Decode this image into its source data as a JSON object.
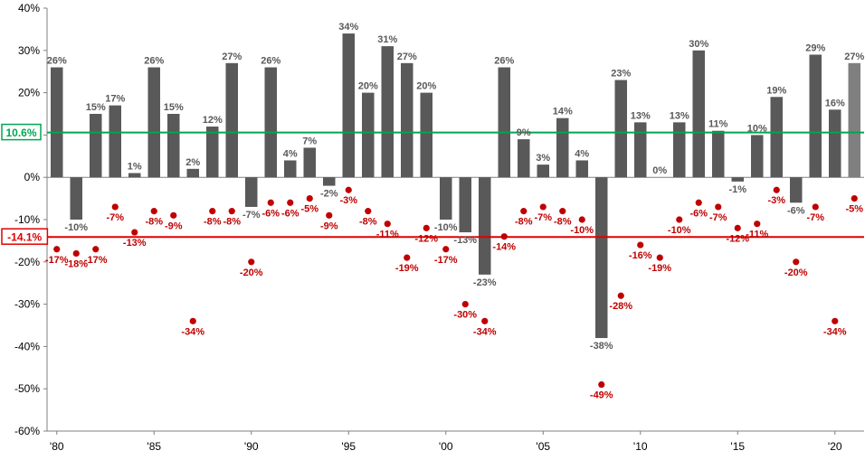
{
  "chart_data": {
    "type": "bar",
    "x": [
      1980,
      1981,
      1982,
      1983,
      1984,
      1985,
      1986,
      1987,
      1988,
      1989,
      1990,
      1991,
      1992,
      1993,
      1994,
      1995,
      1996,
      1997,
      1998,
      1999,
      2000,
      2001,
      2002,
      2003,
      2004,
      2005,
      2006,
      2007,
      2008,
      2009,
      2010,
      2011,
      2012,
      2013,
      2014,
      2015,
      2016,
      2017,
      2018,
      2019,
      2020,
      2021
    ],
    "x_tick_labels": [
      "'80",
      "'85",
      "'90",
      "'95",
      "'00",
      "'05",
      "'10",
      "'15",
      "'20"
    ],
    "x_tick_years": [
      1980,
      1985,
      1990,
      1995,
      2000,
      2005,
      2010,
      2015,
      2020
    ],
    "y_tick_labels": [
      "40%",
      "30%",
      "20%",
      "10%",
      "0%",
      "-10%",
      "-20%",
      "-30%",
      "-40%",
      "-50%",
      "-60%"
    ],
    "ylim": [
      -60,
      40
    ],
    "yticks": [
      40,
      30,
      20,
      10,
      0,
      -10,
      -20,
      -30,
      -40,
      -50,
      -60
    ],
    "series": [
      {
        "kind": "bar",
        "values": [
          26,
          -10,
          15,
          17,
          1,
          26,
          15,
          2,
          12,
          27,
          -7,
          26,
          4,
          7,
          -2,
          34,
          20,
          31,
          27,
          20,
          -10,
          -13,
          -23,
          26,
          9,
          3,
          14,
          4,
          -38,
          23,
          13,
          0,
          13,
          30,
          11,
          -1,
          10,
          19,
          -6,
          29,
          16,
          27
        ],
        "labels": [
          "26%",
          "-10%",
          "15%",
          "17%",
          "1%",
          "26%",
          "15%",
          "2%",
          "12%",
          "27%",
          "-7%",
          "26%",
          "4%",
          "7%",
          "-2%",
          "34%",
          "20%",
          "31%",
          "27%",
          "20%",
          "-10%",
          "-13%",
          "-23%",
          "26%",
          "9%",
          "3%",
          "14%",
          "4%",
          "-38%",
          "23%",
          "13%",
          "0%",
          "13%",
          "30%",
          "11%",
          "-1%",
          "10%",
          "19%",
          "-6%",
          "29%",
          "16%",
          "27%"
        ],
        "color": "#595959",
        "last_color": "#7f7f7f"
      },
      {
        "kind": "dot",
        "values": [
          -17,
          -18,
          -17,
          -7,
          -13,
          -8,
          -9,
          -34,
          -8,
          -8,
          -20,
          -6,
          -6,
          -5,
          -9,
          -3,
          -8,
          -11,
          -19,
          -12,
          -17,
          -30,
          -34,
          -14,
          -8,
          -7,
          -8,
          -10,
          -49,
          -28,
          -16,
          -19,
          -10,
          -6,
          -7,
          -12,
          -11,
          -3,
          -20,
          -7,
          -34,
          -5
        ],
        "labels": [
          "-17%",
          "-18%",
          "-17%",
          "-7%",
          "-13%",
          "-8%",
          "-9%",
          "-34%",
          "-8%",
          "-8%",
          "-20%",
          "-6%",
          "-6%",
          "-5%",
          "-9%",
          "-3%",
          "-8%",
          "-11%",
          "-19%",
          "-12%",
          "-17%",
          "-30%",
          "-34%",
          "-14%",
          "-8%",
          "-7%",
          "-8%",
          "-10%",
          "-49%",
          "-28%",
          "-16%",
          "-19%",
          "-10%",
          "-6%",
          "-7%",
          "-12%",
          "-11%",
          "-3%",
          "-20%",
          "-7%",
          "-34%",
          "-5%"
        ],
        "color": "#c00000"
      }
    ],
    "reference_lines": [
      {
        "value": 10.6,
        "label": "10.6%",
        "color": "#00a651"
      },
      {
        "value": -14.1,
        "label": "-14.1%",
        "color": "#e00000"
      }
    ],
    "grid": false
  }
}
